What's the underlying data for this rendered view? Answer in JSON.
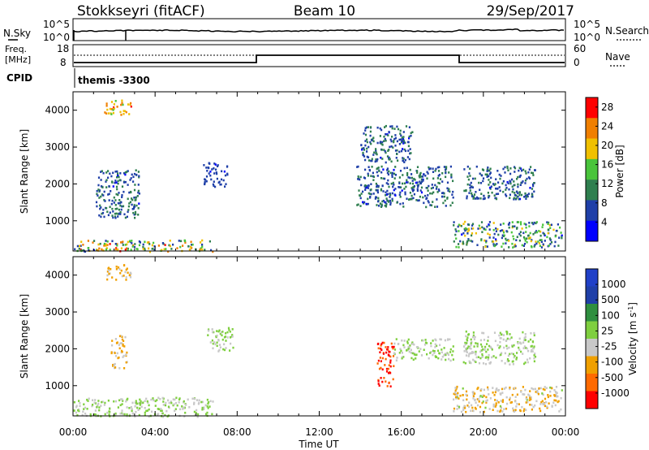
{
  "header": {
    "station": "Stokkseyri (fitACF)",
    "beam": "Beam 10",
    "date": "29/Sep/2017"
  },
  "noise_panel": {
    "left_label": "N.Sky",
    "left_ticks": [
      "10^5",
      "10^0"
    ],
    "right_label": "N.Search",
    "right_ticks": [
      "10^5",
      "10^0"
    ]
  },
  "freq_panel": {
    "left_label_1": "Freq.",
    "left_label_2": "[MHz]",
    "left_ticks": [
      "18",
      "8"
    ],
    "right_label": "Nave",
    "right_ticks": [
      "60",
      "0"
    ]
  },
  "cpid": {
    "label": "CPID",
    "value": "themis -3300"
  },
  "colors": {
    "power": [
      "#0000ff",
      "#1f3fa8",
      "#2f7f4f",
      "#49c43b",
      "#f0c000",
      "#f07f00",
      "#ff0000"
    ],
    "velocity": [
      "#ff0000",
      "#ff6a00",
      "#f0a000",
      "#c8c8c8",
      "#7fcf3f",
      "#2f8f3f",
      "#1f3fa8",
      "#2040c8"
    ]
  },
  "chart_data": [
    {
      "type": "heatmap",
      "title": "",
      "xlabel": "",
      "ylabel": "Slant Range [km]",
      "xlim": [
        "00:00",
        "24:00"
      ],
      "ylim": [
        180,
        4500
      ],
      "y_ticks": [
        "1000",
        "2000",
        "3000",
        "4000"
      ],
      "colorbar": {
        "label": "Power [dB]",
        "ticks": [
          "4",
          "8",
          "12",
          "16",
          "20",
          "24",
          "28"
        ],
        "range": [
          0,
          30
        ]
      },
      "regions": [
        {
          "x": [
            0.0,
            6.8
          ],
          "y": [
            180,
            500
          ],
          "value_range": [
            4,
            28
          ]
        },
        {
          "x": [
            1.1,
            3.2
          ],
          "y": [
            1100,
            2400
          ],
          "value_range": [
            4,
            12
          ]
        },
        {
          "x": [
            1.5,
            2.8
          ],
          "y": [
            3900,
            4300
          ],
          "value_range": [
            16,
            28
          ]
        },
        {
          "x": [
            6.3,
            7.5
          ],
          "y": [
            1950,
            2600
          ],
          "value_range": [
            4,
            8
          ]
        },
        {
          "x": [
            13.8,
            18.5
          ],
          "y": [
            1400,
            2500
          ],
          "value_range": [
            4,
            12
          ]
        },
        {
          "x": [
            14.0,
            16.5
          ],
          "y": [
            2600,
            3600
          ],
          "value_range": [
            4,
            12
          ]
        },
        {
          "x": [
            18.5,
            23.8
          ],
          "y": [
            300,
            1000
          ],
          "value_range": [
            4,
            20
          ]
        },
        {
          "x": [
            19.0,
            22.5
          ],
          "y": [
            1600,
            2500
          ],
          "value_range": [
            4,
            12
          ]
        }
      ]
    },
    {
      "type": "heatmap",
      "title": "",
      "xlabel": "Time UT",
      "ylabel": "Slant Range [km]",
      "xlim": [
        "00:00",
        "24:00"
      ],
      "ylim": [
        180,
        4500
      ],
      "x_ticks": [
        "00:00",
        "04:00",
        "08:00",
        "12:00",
        "16:00",
        "20:00",
        "00:00"
      ],
      "y_ticks": [
        "1000",
        "2000",
        "3000",
        "4000"
      ],
      "colorbar": {
        "label": "Velocity [m s^-1]",
        "ticks": [
          "1000",
          "500",
          "100",
          "25",
          "-25",
          "-100",
          "-500",
          "-1000"
        ],
        "range": [
          -1000,
          1000
        ]
      },
      "regions": [
        {
          "x": [
            0.0,
            6.8
          ],
          "y": [
            180,
            700
          ],
          "value_range": [
            -100,
            100
          ]
        },
        {
          "x": [
            1.5,
            2.8
          ],
          "y": [
            3900,
            4300
          ],
          "value_range": [
            -500,
            -100
          ]
        },
        {
          "x": [
            1.8,
            2.6
          ],
          "y": [
            1500,
            2400
          ],
          "value_range": [
            -500,
            -100
          ]
        },
        {
          "x": [
            6.5,
            7.8
          ],
          "y": [
            1950,
            2600
          ],
          "value_range": [
            -25,
            25
          ]
        },
        {
          "x": [
            14.8,
            15.6
          ],
          "y": [
            1000,
            2200
          ],
          "value_range": [
            -1000,
            -500
          ]
        },
        {
          "x": [
            15.6,
            18.5
          ],
          "y": [
            1700,
            2300
          ],
          "value_range": [
            -25,
            25
          ]
        },
        {
          "x": [
            18.5,
            23.8
          ],
          "y": [
            300,
            1000
          ],
          "value_range": [
            -500,
            25
          ]
        },
        {
          "x": [
            19.0,
            22.5
          ],
          "y": [
            1600,
            2500
          ],
          "value_range": [
            -25,
            25
          ]
        }
      ]
    }
  ]
}
